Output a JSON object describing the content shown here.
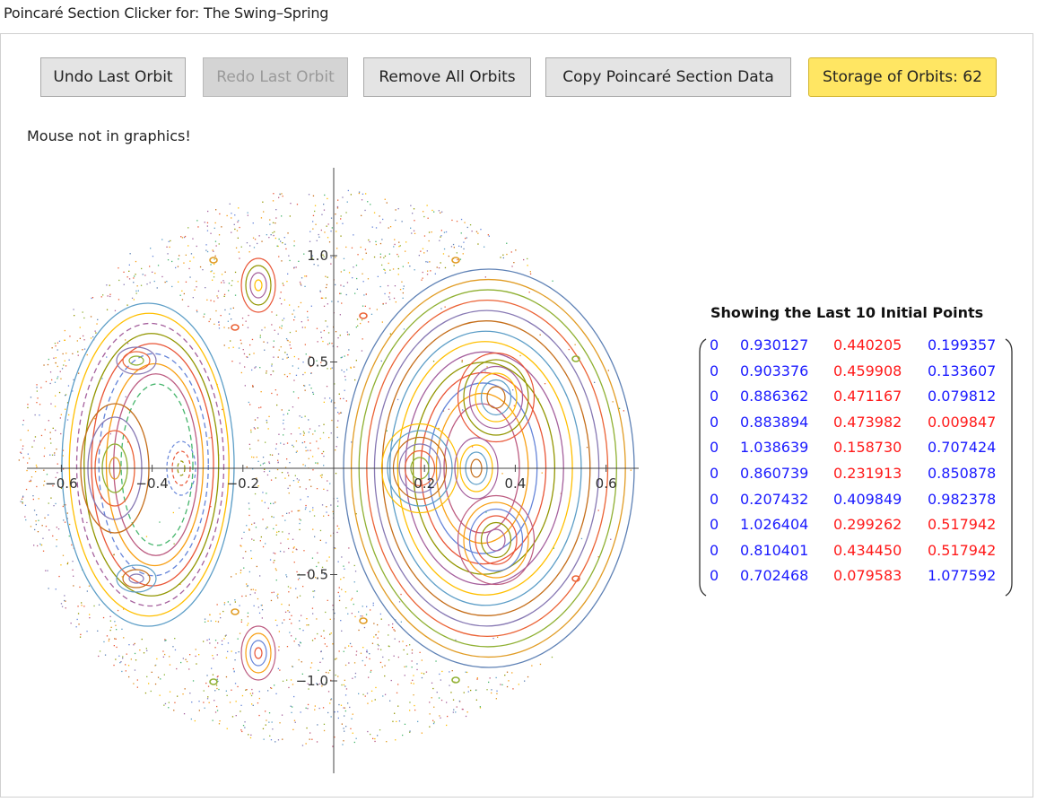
{
  "title": "Poincaré Section Clicker for: The Swing–Spring",
  "buttons": {
    "undo": "Undo Last Orbit",
    "redo": "Redo Last Orbit",
    "remove": "Remove All Orbits",
    "copy": "Copy Poincaré Section Data",
    "storage": "Storage of Orbits: 62"
  },
  "status": "Mouse not in graphics!",
  "plot": {
    "x_ticks": [
      {
        "value": -0.6,
        "label": "−0.6"
      },
      {
        "value": -0.4,
        "label": "−0.4"
      },
      {
        "value": -0.2,
        "label": "−0.2"
      },
      {
        "value": 0.2,
        "label": "0.2"
      },
      {
        "value": 0.4,
        "label": "0.4"
      },
      {
        "value": 0.6,
        "label": "0.6"
      }
    ],
    "y_ticks": [
      {
        "value": 1.0,
        "label": "1.0"
      },
      {
        "value": 0.5,
        "label": "0.5"
      },
      {
        "value": -0.5,
        "label": "−0.5"
      },
      {
        "value": -1.0,
        "label": "−1.0"
      }
    ],
    "orbit_colors": [
      "#5e81b5",
      "#e19c24",
      "#8fb032",
      "#eb6235",
      "#8778b3",
      "#c56e1a",
      "#5d9ec7",
      "#ffbf00",
      "#a5609d",
      "#929600",
      "#e95536",
      "#6685d9",
      "#f89f13",
      "#bc5b80",
      "#47b66d"
    ]
  },
  "table": {
    "title": "Showing the Last 10 Initial Points",
    "colors": {
      "blue": "#1a1aff",
      "red": "#ff1a1a"
    },
    "rows": [
      {
        "cells": [
          "0",
          "0.930127",
          "0.440205",
          "0.199357"
        ],
        "colors": [
          "blue",
          "blue",
          "red",
          "blue"
        ]
      },
      {
        "cells": [
          "0",
          "0.903376",
          "0.459908",
          "0.133607"
        ],
        "colors": [
          "blue",
          "blue",
          "red",
          "blue"
        ]
      },
      {
        "cells": [
          "0",
          "0.886362",
          "0.471167",
          "0.079812"
        ],
        "colors": [
          "blue",
          "blue",
          "red",
          "blue"
        ]
      },
      {
        "cells": [
          "0",
          "0.883894",
          "0.473982",
          "0.009847"
        ],
        "colors": [
          "blue",
          "blue",
          "red",
          "red"
        ]
      },
      {
        "cells": [
          "0",
          "1.038639",
          "0.158730",
          "0.707424"
        ],
        "colors": [
          "blue",
          "blue",
          "red",
          "blue"
        ]
      },
      {
        "cells": [
          "0",
          "0.860739",
          "0.231913",
          "0.850878"
        ],
        "colors": [
          "blue",
          "blue",
          "red",
          "blue"
        ]
      },
      {
        "cells": [
          "0",
          "0.207432",
          "0.409849",
          "0.982378"
        ],
        "colors": [
          "blue",
          "blue",
          "blue",
          "blue"
        ]
      },
      {
        "cells": [
          "0",
          "1.026404",
          "0.299262",
          "0.517942"
        ],
        "colors": [
          "blue",
          "blue",
          "red",
          "red"
        ]
      },
      {
        "cells": [
          "0",
          "0.810401",
          "0.434450",
          "0.517942"
        ],
        "colors": [
          "blue",
          "blue",
          "red",
          "red"
        ]
      },
      {
        "cells": [
          "0",
          "0.702468",
          "0.079583",
          "1.077592"
        ],
        "colors": [
          "blue",
          "blue",
          "red",
          "blue"
        ]
      }
    ]
  }
}
